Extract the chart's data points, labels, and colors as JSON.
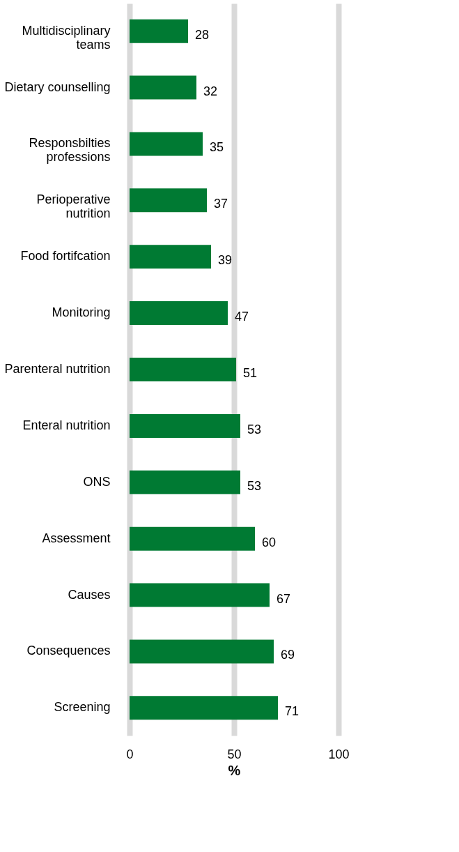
{
  "chart_data": {
    "type": "bar",
    "orientation": "horizontal",
    "categories": [
      "Multidisciplinary teams",
      "Dietary counselling",
      "Responsbilties professions",
      "Perioperative nutrition",
      "Food fortifcation",
      "Monitoring",
      "Parenteral nutrition",
      "Enteral nutrition",
      "ONS",
      "Assessment",
      "Causes",
      "Consequences",
      "Screening"
    ],
    "values": [
      28,
      32,
      35,
      37,
      39,
      47,
      51,
      53,
      53,
      60,
      67,
      69,
      71
    ],
    "color": "#007a33",
    "xlim": [
      0,
      100
    ],
    "xticks": [
      0,
      50,
      100
    ],
    "xlabel": "%",
    "grid": "x",
    "data_labels": true
  }
}
